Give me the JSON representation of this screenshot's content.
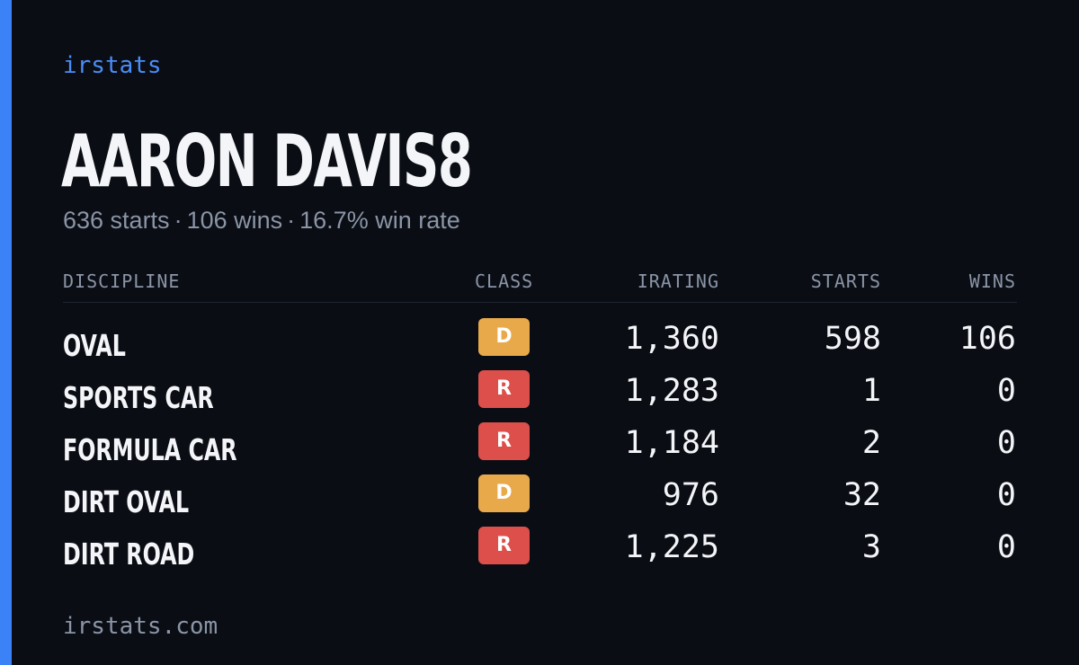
{
  "brand": "irstats",
  "player": {
    "name": "AARON DAVIS8",
    "starts_text": "636 starts",
    "wins_text": "106 wins",
    "winrate_text": "16.7% win rate"
  },
  "columns": {
    "discipline": "DISCIPLINE",
    "class": "CLASS",
    "irating": "IRATING",
    "starts": "STARTS",
    "wins": "WINS"
  },
  "rows": [
    {
      "discipline": "OVAL",
      "class": "D",
      "class_color": "#e8a94a",
      "irating": "1,360",
      "starts": "598",
      "wins": "106"
    },
    {
      "discipline": "SPORTS CAR",
      "class": "R",
      "class_color": "#dc4f4b",
      "irating": "1,283",
      "starts": "1",
      "wins": "0"
    },
    {
      "discipline": "FORMULA CAR",
      "class": "R",
      "class_color": "#dc4f4b",
      "irating": "1,184",
      "starts": "2",
      "wins": "0"
    },
    {
      "discipline": "DIRT OVAL",
      "class": "D",
      "class_color": "#e8a94a",
      "irating": "976",
      "starts": "32",
      "wins": "0"
    },
    {
      "discipline": "DIRT ROAD",
      "class": "R",
      "class_color": "#dc4f4b",
      "irating": "1,225",
      "starts": "3",
      "wins": "0"
    }
  ],
  "footer": "irstats.com",
  "colors": {
    "accent": "#3b82f6",
    "background": "#0a0d14",
    "muted": "#8b95a6",
    "text": "#f4f5f8"
  }
}
